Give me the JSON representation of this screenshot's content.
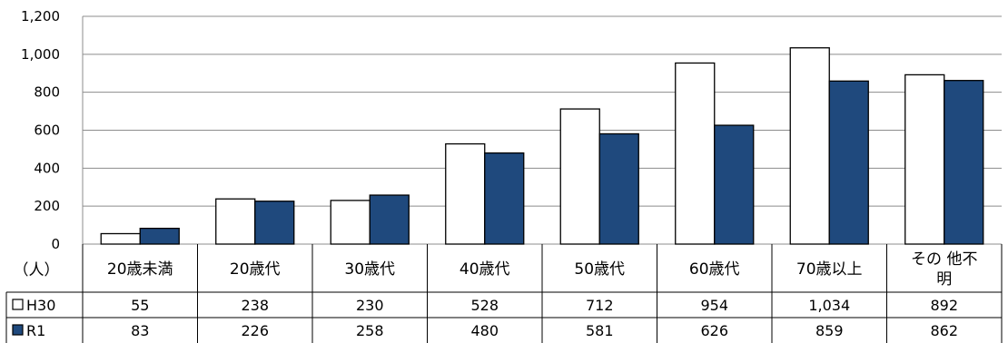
{
  "chart_data": {
    "type": "bar",
    "unit_label": "（人）",
    "categories": [
      "20歳未満",
      "20歳代",
      "30歳代",
      "40歳代",
      "50歳代",
      "60歳代",
      "70歳以上",
      "その他不明"
    ],
    "category_display": [
      [
        "20歳未満"
      ],
      [
        "20歳代"
      ],
      [
        "30歳代"
      ],
      [
        "40歳代"
      ],
      [
        "50歳代"
      ],
      [
        "60歳代"
      ],
      [
        "70歳以上"
      ],
      [
        "その 他不",
        "明"
      ]
    ],
    "series": [
      {
        "name": "H30",
        "values": [
          55,
          238,
          230,
          528,
          712,
          954,
          1034,
          892
        ],
        "display": [
          "55",
          "238",
          "230",
          "528",
          "712",
          "954",
          "1,034",
          "892"
        ],
        "color": "#ffffff"
      },
      {
        "name": "R1",
        "values": [
          83,
          226,
          258,
          480,
          581,
          626,
          859,
          862
        ],
        "display": [
          "83",
          "226",
          "258",
          "480",
          "581",
          "626",
          "859",
          "862"
        ],
        "color": "#1f497d"
      }
    ],
    "yticks": [
      "0",
      "200",
      "400",
      "600",
      "800",
      "1,000",
      "1,200"
    ],
    "ylim": [
      0,
      1200
    ],
    "grid": true,
    "legend": "data-table"
  }
}
